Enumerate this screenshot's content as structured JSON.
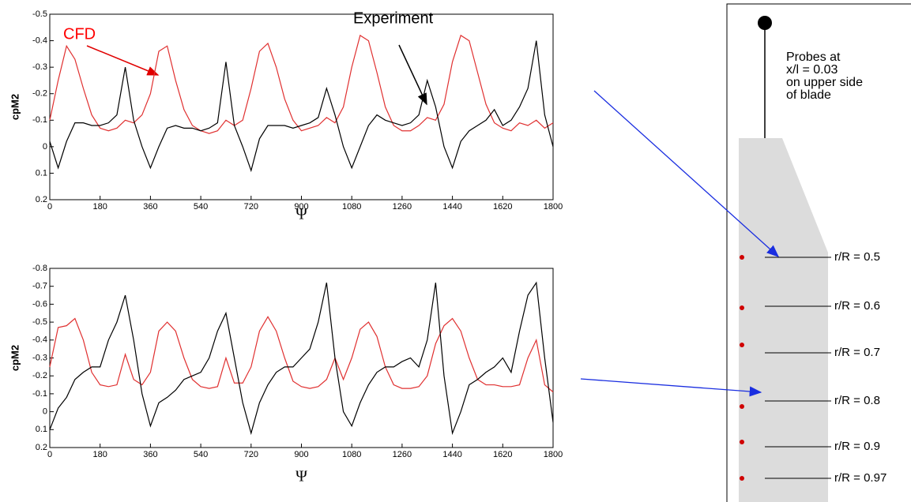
{
  "chart_data": [
    {
      "type": "line",
      "x_label": "Ψ",
      "y_label": "cpM2",
      "ylim": [
        -0.5,
        0.2
      ],
      "y_inverted": true,
      "yticks": [
        -0.5,
        -0.4,
        -0.3,
        -0.2,
        -0.1,
        0,
        0.1,
        0.2
      ],
      "xlim": [
        0,
        1800
      ],
      "xticks": [
        0,
        180,
        360,
        540,
        720,
        900,
        1080,
        1260,
        1440,
        1620,
        1800
      ],
      "annotations": [
        {
          "text": "CFD",
          "color": "#ff0000"
        },
        {
          "text": "Experiment",
          "color": "#000000"
        }
      ],
      "x": [
        0,
        30,
        60,
        90,
        120,
        150,
        180,
        210,
        240,
        270,
        300,
        330,
        360,
        390,
        420,
        450,
        480,
        510,
        540,
        570,
        600,
        630,
        660,
        690,
        720,
        750,
        780,
        810,
        840,
        870,
        900,
        930,
        960,
        990,
        1020,
        1050,
        1080,
        1110,
        1140,
        1170,
        1200,
        1230,
        1260,
        1290,
        1320,
        1350,
        1380,
        1410,
        1440,
        1470,
        1500,
        1530,
        1560,
        1590,
        1620,
        1650,
        1680,
        1710,
        1740,
        1770,
        1800
      ],
      "series": [
        {
          "name": "CFD",
          "color": "#e03030",
          "values": [
            -0.1,
            -0.25,
            -0.38,
            -0.33,
            -0.22,
            -0.12,
            -0.07,
            -0.06,
            -0.07,
            -0.1,
            -0.09,
            -0.12,
            -0.2,
            -0.36,
            -0.38,
            -0.25,
            -0.14,
            -0.08,
            -0.06,
            -0.05,
            -0.06,
            -0.1,
            -0.08,
            -0.1,
            -0.22,
            -0.36,
            -0.39,
            -0.3,
            -0.18,
            -0.1,
            -0.06,
            -0.07,
            -0.08,
            -0.11,
            -0.09,
            -0.15,
            -0.3,
            -0.42,
            -0.4,
            -0.28,
            -0.15,
            -0.08,
            -0.06,
            -0.06,
            -0.08,
            -0.11,
            -0.1,
            -0.16,
            -0.32,
            -0.42,
            -0.4,
            -0.28,
            -0.16,
            -0.09,
            -0.07,
            -0.06,
            -0.09,
            -0.08,
            -0.1,
            -0.07,
            -0.09
          ]
        },
        {
          "name": "Experiment",
          "color": "#000000",
          "values": [
            -0.02,
            0.08,
            -0.02,
            -0.09,
            -0.09,
            -0.08,
            -0.08,
            -0.09,
            -0.12,
            -0.3,
            -0.1,
            0.0,
            0.08,
            0.0,
            -0.07,
            -0.08,
            -0.07,
            -0.07,
            -0.06,
            -0.07,
            -0.09,
            -0.32,
            -0.08,
            0.0,
            0.09,
            -0.03,
            -0.08,
            -0.08,
            -0.08,
            -0.07,
            -0.08,
            -0.09,
            -0.11,
            -0.22,
            -0.12,
            0.0,
            0.08,
            0.0,
            -0.08,
            -0.12,
            -0.1,
            -0.09,
            -0.08,
            -0.09,
            -0.12,
            -0.25,
            -0.15,
            0.0,
            0.08,
            -0.02,
            -0.06,
            -0.08,
            -0.1,
            -0.14,
            -0.08,
            -0.1,
            -0.15,
            -0.22,
            -0.4,
            -0.12,
            0.0
          ]
        }
      ]
    },
    {
      "type": "line",
      "x_label": "Ψ",
      "y_label": "cpM2",
      "ylim": [
        -0.8,
        0.2
      ],
      "y_inverted": true,
      "yticks": [
        -0.8,
        -0.7,
        -0.6,
        -0.5,
        -0.4,
        -0.3,
        -0.2,
        -0.1,
        0,
        0.1,
        0.2
      ],
      "xlim": [
        0,
        1800
      ],
      "xticks": [
        0,
        180,
        360,
        540,
        720,
        900,
        1080,
        1260,
        1440,
        1620,
        1800
      ],
      "x": [
        0,
        30,
        60,
        90,
        120,
        150,
        180,
        210,
        240,
        270,
        300,
        330,
        360,
        390,
        420,
        450,
        480,
        510,
        540,
        570,
        600,
        630,
        660,
        690,
        720,
        750,
        780,
        810,
        840,
        870,
        900,
        930,
        960,
        990,
        1020,
        1050,
        1080,
        1110,
        1140,
        1170,
        1200,
        1230,
        1260,
        1290,
        1320,
        1350,
        1380,
        1410,
        1440,
        1470,
        1500,
        1530,
        1560,
        1590,
        1620,
        1650,
        1680,
        1710,
        1740,
        1770,
        1800
      ],
      "series": [
        {
          "name": "CFD",
          "color": "#e03030",
          "values": [
            -0.25,
            -0.47,
            -0.48,
            -0.52,
            -0.4,
            -0.22,
            -0.15,
            -0.14,
            -0.15,
            -0.32,
            -0.18,
            -0.15,
            -0.22,
            -0.45,
            -0.5,
            -0.45,
            -0.3,
            -0.18,
            -0.14,
            -0.13,
            -0.14,
            -0.3,
            -0.16,
            -0.16,
            -0.25,
            -0.45,
            -0.53,
            -0.45,
            -0.3,
            -0.17,
            -0.14,
            -0.13,
            -0.14,
            -0.18,
            -0.3,
            -0.18,
            -0.3,
            -0.46,
            -0.5,
            -0.42,
            -0.25,
            -0.15,
            -0.13,
            -0.13,
            -0.14,
            -0.2,
            -0.38,
            -0.48,
            -0.52,
            -0.45,
            -0.3,
            -0.18,
            -0.15,
            -0.15,
            -0.14,
            -0.14,
            -0.15,
            -0.3,
            -0.4,
            -0.15,
            -0.11
          ]
        },
        {
          "name": "Experiment",
          "color": "#000000",
          "values": [
            0.1,
            -0.02,
            -0.08,
            -0.18,
            -0.22,
            -0.25,
            -0.25,
            -0.4,
            -0.5,
            -0.65,
            -0.4,
            -0.1,
            0.08,
            -0.05,
            -0.08,
            -0.12,
            -0.18,
            -0.2,
            -0.22,
            -0.3,
            -0.45,
            -0.55,
            -0.3,
            -0.05,
            0.12,
            -0.05,
            -0.15,
            -0.22,
            -0.25,
            -0.25,
            -0.3,
            -0.35,
            -0.5,
            -0.72,
            -0.3,
            0.0,
            0.08,
            -0.05,
            -0.15,
            -0.22,
            -0.25,
            -0.25,
            -0.28,
            -0.3,
            -0.25,
            -0.4,
            -0.72,
            -0.2,
            0.12,
            0.0,
            -0.15,
            -0.18,
            -0.22,
            -0.25,
            -0.3,
            -0.22,
            -0.45,
            -0.65,
            -0.72,
            -0.3,
            0.06
          ]
        }
      ]
    }
  ],
  "diagram": {
    "note": [
      "Probes at",
      "x/l = 0.03",
      "on upper side",
      "of blade"
    ],
    "probes": [
      "r/R = 0.5",
      "r/R = 0.6",
      "r/R = 0.7",
      "r/R = 0.8",
      "r/R = 0.9",
      "r/R = 0.97"
    ]
  }
}
